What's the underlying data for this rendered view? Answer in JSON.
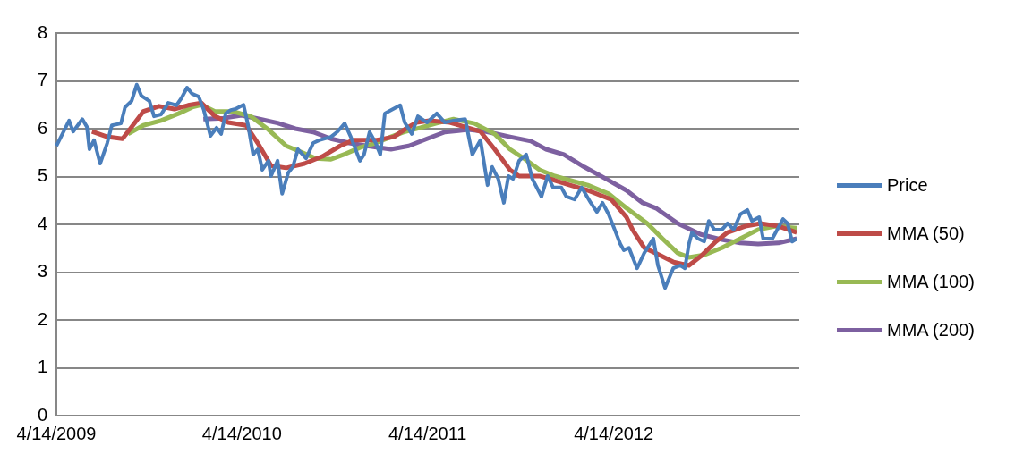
{
  "chart_data": {
    "type": "line",
    "xlim": [
      "2009-04-14",
      "2013-04-14"
    ],
    "xticks": [
      {
        "value": "2009-04-14",
        "label": "4/14/2009"
      },
      {
        "value": "2010-04-14",
        "label": "4/14/2010"
      },
      {
        "value": "2011-04-14",
        "label": "4/14/2011"
      },
      {
        "value": "2012-04-14",
        "label": "4/14/2012"
      }
    ],
    "ylim": [
      0,
      8
    ],
    "yticks": [
      0,
      1,
      2,
      3,
      4,
      5,
      6,
      7,
      8
    ],
    "grid": "y",
    "legend": "right",
    "marker": "none",
    "line_style": "solid",
    "series": [
      {
        "name": "Price",
        "color": "#4a7ebb",
        "x": [
          "2009-04-14",
          "2009-04-23",
          "2009-05-09",
          "2009-05-17",
          "2009-06-04",
          "2009-06-13",
          "2009-06-18",
          "2009-06-27",
          "2009-07-09",
          "2009-07-23",
          "2009-08-01",
          "2009-08-19",
          "2009-08-27",
          "2009-09-09",
          "2009-09-19",
          "2009-09-28",
          "2009-10-14",
          "2009-10-23",
          "2009-11-06",
          "2009-11-20",
          "2009-12-06",
          "2009-12-16",
          "2009-12-27",
          "2010-01-06",
          "2010-01-19",
          "2010-01-29",
          "2010-02-11",
          "2010-02-23",
          "2010-03-04",
          "2010-03-13",
          "2010-03-23",
          "2010-04-01",
          "2010-04-17",
          "2010-04-26",
          "2010-05-06",
          "2010-05-15",
          "2010-05-24",
          "2010-06-05",
          "2010-06-10",
          "2010-06-23",
          "2010-07-02",
          "2010-07-14",
          "2010-07-23",
          "2010-08-02",
          "2010-08-18",
          "2010-09-01",
          "2010-09-13",
          "2010-10-06",
          "2010-10-19",
          "2010-11-02",
          "2010-11-14",
          "2010-12-02",
          "2010-12-10",
          "2010-12-21",
          "2011-01-02",
          "2011-01-11",
          "2011-01-20",
          "2011-02-01",
          "2011-02-19",
          "2011-02-28",
          "2011-03-14",
          "2011-03-26",
          "2011-04-13",
          "2011-05-02",
          "2011-05-18",
          "2011-06-04",
          "2011-06-27",
          "2011-07-11",
          "2011-07-27",
          "2011-08-10",
          "2011-08-19",
          "2011-08-31",
          "2011-09-11",
          "2011-09-20",
          "2011-09-29",
          "2011-10-11",
          "2011-10-25",
          "2011-11-06",
          "2011-11-24",
          "2011-12-06",
          "2011-12-17",
          "2012-01-02",
          "2012-01-12",
          "2012-01-28",
          "2012-02-11",
          "2012-02-29",
          "2012-03-12",
          "2012-03-23",
          "2012-04-04",
          "2012-04-16",
          "2012-04-27",
          "2012-05-04",
          "2012-05-14",
          "2012-05-30",
          "2012-06-13",
          "2012-07-01",
          "2012-07-10",
          "2012-07-24",
          "2012-08-09",
          "2012-08-23",
          "2012-09-01",
          "2012-09-09",
          "2012-09-15",
          "2012-09-27",
          "2012-10-09",
          "2012-10-18",
          "2012-10-29",
          "2012-11-13",
          "2012-11-24",
          "2012-12-06",
          "2012-12-19",
          "2013-01-02",
          "2013-01-11",
          "2013-01-25",
          "2013-02-02",
          "2013-02-20",
          "2013-03-13",
          "2013-03-22",
          "2013-03-31",
          "2013-04-09"
        ],
        "values": [
          5.64,
          5.83,
          6.17,
          5.94,
          6.2,
          6.04,
          5.57,
          5.76,
          5.27,
          5.7,
          6.07,
          6.11,
          6.45,
          6.58,
          6.92,
          6.69,
          6.58,
          6.26,
          6.3,
          6.54,
          6.49,
          6.64,
          6.86,
          6.73,
          6.67,
          6.39,
          5.85,
          6.02,
          5.89,
          6.32,
          6.39,
          6.41,
          6.5,
          6.07,
          5.46,
          5.57,
          5.14,
          5.33,
          5.01,
          5.33,
          4.64,
          5.08,
          5.2,
          5.57,
          5.38,
          5.7,
          5.76,
          5.83,
          5.94,
          6.11,
          5.83,
          5.33,
          5.46,
          5.93,
          5.7,
          5.46,
          6.32,
          6.39,
          6.49,
          6.13,
          5.89,
          6.26,
          6.13,
          6.32,
          6.13,
          6.17,
          6.2,
          5.46,
          5.76,
          4.82,
          5.2,
          4.95,
          4.45,
          5.01,
          4.95,
          5.33,
          5.46,
          4.95,
          4.58,
          5.01,
          4.77,
          4.77,
          4.58,
          4.52,
          4.77,
          4.45,
          4.26,
          4.45,
          4.21,
          3.89,
          3.59,
          3.46,
          3.51,
          3.08,
          3.4,
          3.7,
          3.14,
          2.67,
          3.08,
          3.14,
          3.08,
          3.59,
          3.83,
          3.7,
          3.64,
          4.07,
          3.89,
          3.89,
          4.02,
          3.89,
          4.21,
          4.3,
          4.07,
          4.15,
          3.7,
          3.7,
          4.11,
          4.02,
          3.64,
          3.7
        ]
      },
      {
        "name": "MMA (50)",
        "color": "#be4b48",
        "x": [
          "2009-06-23",
          "2009-07-23",
          "2009-08-22",
          "2009-09-05",
          "2009-10-02",
          "2009-11-02",
          "2009-12-02",
          "2009-12-29",
          "2010-01-24",
          "2010-02-20",
          "2010-03-18",
          "2010-04-22",
          "2010-05-15",
          "2010-06-10",
          "2010-07-10",
          "2010-08-15",
          "2010-09-19",
          "2010-10-24",
          "2010-11-19",
          "2011-01-02",
          "2011-02-07",
          "2011-03-05",
          "2011-03-23",
          "2011-04-18",
          "2011-05-28",
          "2011-07-27",
          "2011-08-24",
          "2011-09-23",
          "2011-10-11",
          "2011-11-20",
          "2011-12-20",
          "2012-01-19",
          "2012-02-23",
          "2012-04-09",
          "2012-05-09",
          "2012-05-21",
          "2012-06-13",
          "2012-07-13",
          "2012-08-10",
          "2012-09-09",
          "2012-10-02",
          "2012-11-01",
          "2012-11-24",
          "2012-12-29",
          "2013-01-28",
          "2013-03-04",
          "2013-04-09"
        ],
        "values": [
          5.94,
          5.83,
          5.79,
          5.98,
          6.36,
          6.47,
          6.41,
          6.49,
          6.54,
          6.26,
          6.13,
          6.07,
          5.7,
          5.23,
          5.18,
          5.27,
          5.42,
          5.64,
          5.76,
          5.76,
          5.83,
          6.02,
          6.13,
          6.17,
          6.13,
          5.94,
          5.57,
          5.14,
          5.01,
          5.01,
          4.92,
          4.82,
          4.71,
          4.52,
          4.15,
          3.89,
          3.51,
          3.36,
          3.21,
          3.14,
          3.33,
          3.64,
          3.83,
          3.96,
          4.02,
          3.96,
          3.83
        ]
      },
      {
        "name": "MMA (100)",
        "color": "#98b954",
        "x": [
          "2009-09-02",
          "2009-10-02",
          "2009-11-06",
          "2009-12-11",
          "2010-01-06",
          "2010-01-24",
          "2010-02-20",
          "2010-03-27",
          "2010-05-01",
          "2010-06-05",
          "2010-07-10",
          "2010-08-09",
          "2010-09-06",
          "2010-10-06",
          "2010-11-05",
          "2010-12-03",
          "2011-01-02",
          "2011-02-01",
          "2011-03-01",
          "2011-03-31",
          "2011-04-30",
          "2011-06-04",
          "2011-07-15",
          "2011-08-24",
          "2011-09-23",
          "2011-10-23",
          "2011-11-20",
          "2011-12-20",
          "2012-01-19",
          "2012-02-23",
          "2012-04-04",
          "2012-05-09",
          "2012-06-19",
          "2012-07-19",
          "2012-08-18",
          "2012-09-09",
          "2012-10-09",
          "2012-11-13",
          "2012-12-19",
          "2013-01-23",
          "2013-02-27",
          "2013-04-09"
        ],
        "values": [
          5.89,
          6.07,
          6.17,
          6.32,
          6.45,
          6.5,
          6.36,
          6.36,
          6.26,
          5.98,
          5.64,
          5.51,
          5.38,
          5.36,
          5.48,
          5.61,
          5.7,
          5.83,
          5.94,
          6.02,
          6.11,
          6.2,
          6.11,
          5.89,
          5.57,
          5.36,
          5.14,
          5.01,
          4.92,
          4.82,
          4.64,
          4.34,
          4.02,
          3.7,
          3.4,
          3.31,
          3.36,
          3.51,
          3.7,
          3.89,
          3.96,
          3.92
        ]
      },
      {
        "name": "MMA (200)",
        "color": "#7d60a0",
        "x": [
          "2010-01-28",
          "2010-03-09",
          "2010-04-13",
          "2010-05-19",
          "2010-06-23",
          "2010-07-28",
          "2010-09-01",
          "2010-10-06",
          "2010-11-11",
          "2010-12-16",
          "2011-02-01",
          "2011-03-08",
          "2011-04-13",
          "2011-05-18",
          "2011-07-03",
          "2011-08-07",
          "2011-09-23",
          "2011-11-03",
          "2011-12-03",
          "2012-01-07",
          "2012-02-16",
          "2012-03-30",
          "2012-05-09",
          "2012-06-10",
          "2012-07-06",
          "2012-08-18",
          "2012-10-02",
          "2012-11-13",
          "2012-12-19",
          "2013-01-23",
          "2013-03-04",
          "2013-04-09"
        ],
        "values": [
          6.2,
          6.22,
          6.28,
          6.2,
          6.12,
          6.0,
          5.93,
          5.79,
          5.7,
          5.64,
          5.57,
          5.64,
          5.79,
          5.93,
          5.98,
          5.94,
          5.83,
          5.74,
          5.57,
          5.46,
          5.2,
          4.95,
          4.71,
          4.45,
          4.34,
          4.02,
          3.79,
          3.68,
          3.61,
          3.59,
          3.61,
          3.7
        ]
      }
    ]
  }
}
